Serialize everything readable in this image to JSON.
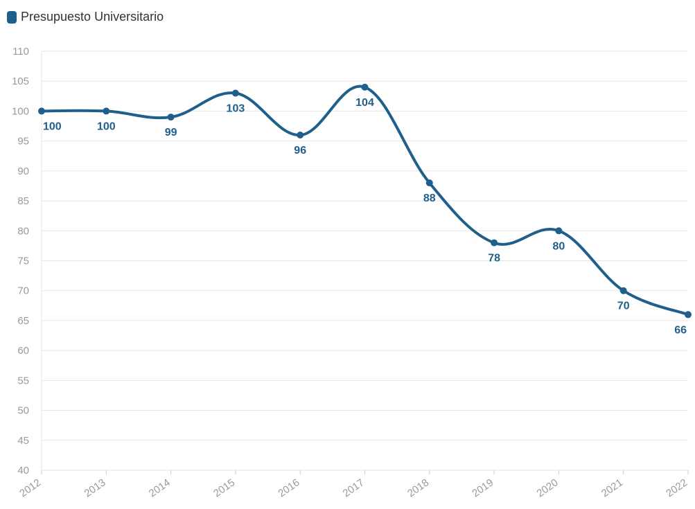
{
  "colors": {
    "series": "#1f5f8b",
    "grid": "#e6e6e6",
    "tick_text": "#9a9a9a"
  },
  "chart_data": {
    "type": "line",
    "x": [
      "2012",
      "2013",
      "2014",
      "2015",
      "2016",
      "2017",
      "2018",
      "2019",
      "2020",
      "2021",
      "2022"
    ],
    "series": [
      {
        "name": "Presupuesto Universitario",
        "values": [
          100,
          100,
          99,
          103,
          96,
          104,
          88,
          78,
          80,
          70,
          66
        ],
        "data_labels": [
          "100",
          "100",
          "99",
          "103",
          "96",
          "104",
          "88",
          "78",
          "80",
          "70",
          "66"
        ]
      }
    ],
    "yticks": [
      "110",
      "105",
      "100",
      "95",
      "90",
      "85",
      "80",
      "75",
      "70",
      "65",
      "60",
      "55",
      "50",
      "45",
      "40"
    ],
    "ylim": [
      40,
      110
    ],
    "grid": true,
    "legend_position": "top-left",
    "curve": "smooth"
  }
}
